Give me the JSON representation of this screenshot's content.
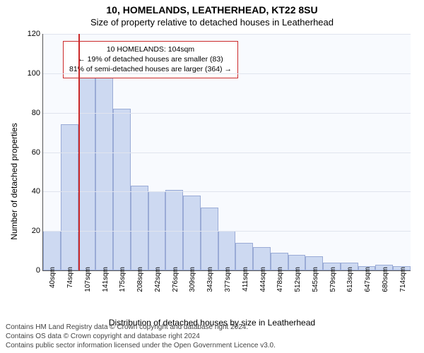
{
  "titles": {
    "line1": "10, HOMELANDS, LEATHERHEAD, KT22 8SU",
    "line2": "Size of property relative to detached houses in Leatherhead"
  },
  "axes": {
    "ylabel": "Number of detached properties",
    "xlabel": "Distribution of detached houses by size in Leatherhead",
    "ylim_max": 120,
    "ytick_step": 20,
    "yticks": [
      0,
      20,
      40,
      60,
      80,
      100,
      120
    ]
  },
  "style": {
    "bg": "#ffffff",
    "plot_bg": "#f8fafe",
    "bar_fill": "#cdd9f1",
    "bar_border": "#9aabd6",
    "grid": "#e0e4ee",
    "marker": "#cc2a2a",
    "text": "#000000",
    "title_fs": 14,
    "subtitle_fs": 13,
    "label_fs": 12,
    "tick_fs": 11
  },
  "histogram": {
    "type": "histogram",
    "bar_count": 21,
    "values": [
      20,
      74,
      105,
      100,
      82,
      43,
      40,
      41,
      38,
      32,
      20,
      14,
      12,
      9,
      8,
      7,
      4,
      4,
      2,
      3,
      2
    ],
    "x_tick_labels": [
      "40sqm",
      "74sqm",
      "107sqm",
      "141sqm",
      "175sqm",
      "208sqm",
      "242sqm",
      "276sqm",
      "309sqm",
      "343sqm",
      "377sqm",
      "411sqm",
      "444sqm",
      "478sqm",
      "512sqm",
      "545sqm",
      "579sqm",
      "613sqm",
      "647sqm",
      "680sqm",
      "714sqm"
    ]
  },
  "marker": {
    "bin_index_right_edge": 2,
    "annotation": {
      "l1": "10 HOMELANDS: 104sqm",
      "l2": "← 19% of detached houses are smaller (83)",
      "l3": "81% of semi-detached houses are larger (364) →"
    }
  },
  "footer": {
    "l1": "Contains HM Land Registry data © Crown copyright and database right 2024.",
    "l2": "Contains OS data © Crown copyright and database right 2024",
    "l3": "Contains public sector information licensed under the Open Government Licence v3.0."
  }
}
